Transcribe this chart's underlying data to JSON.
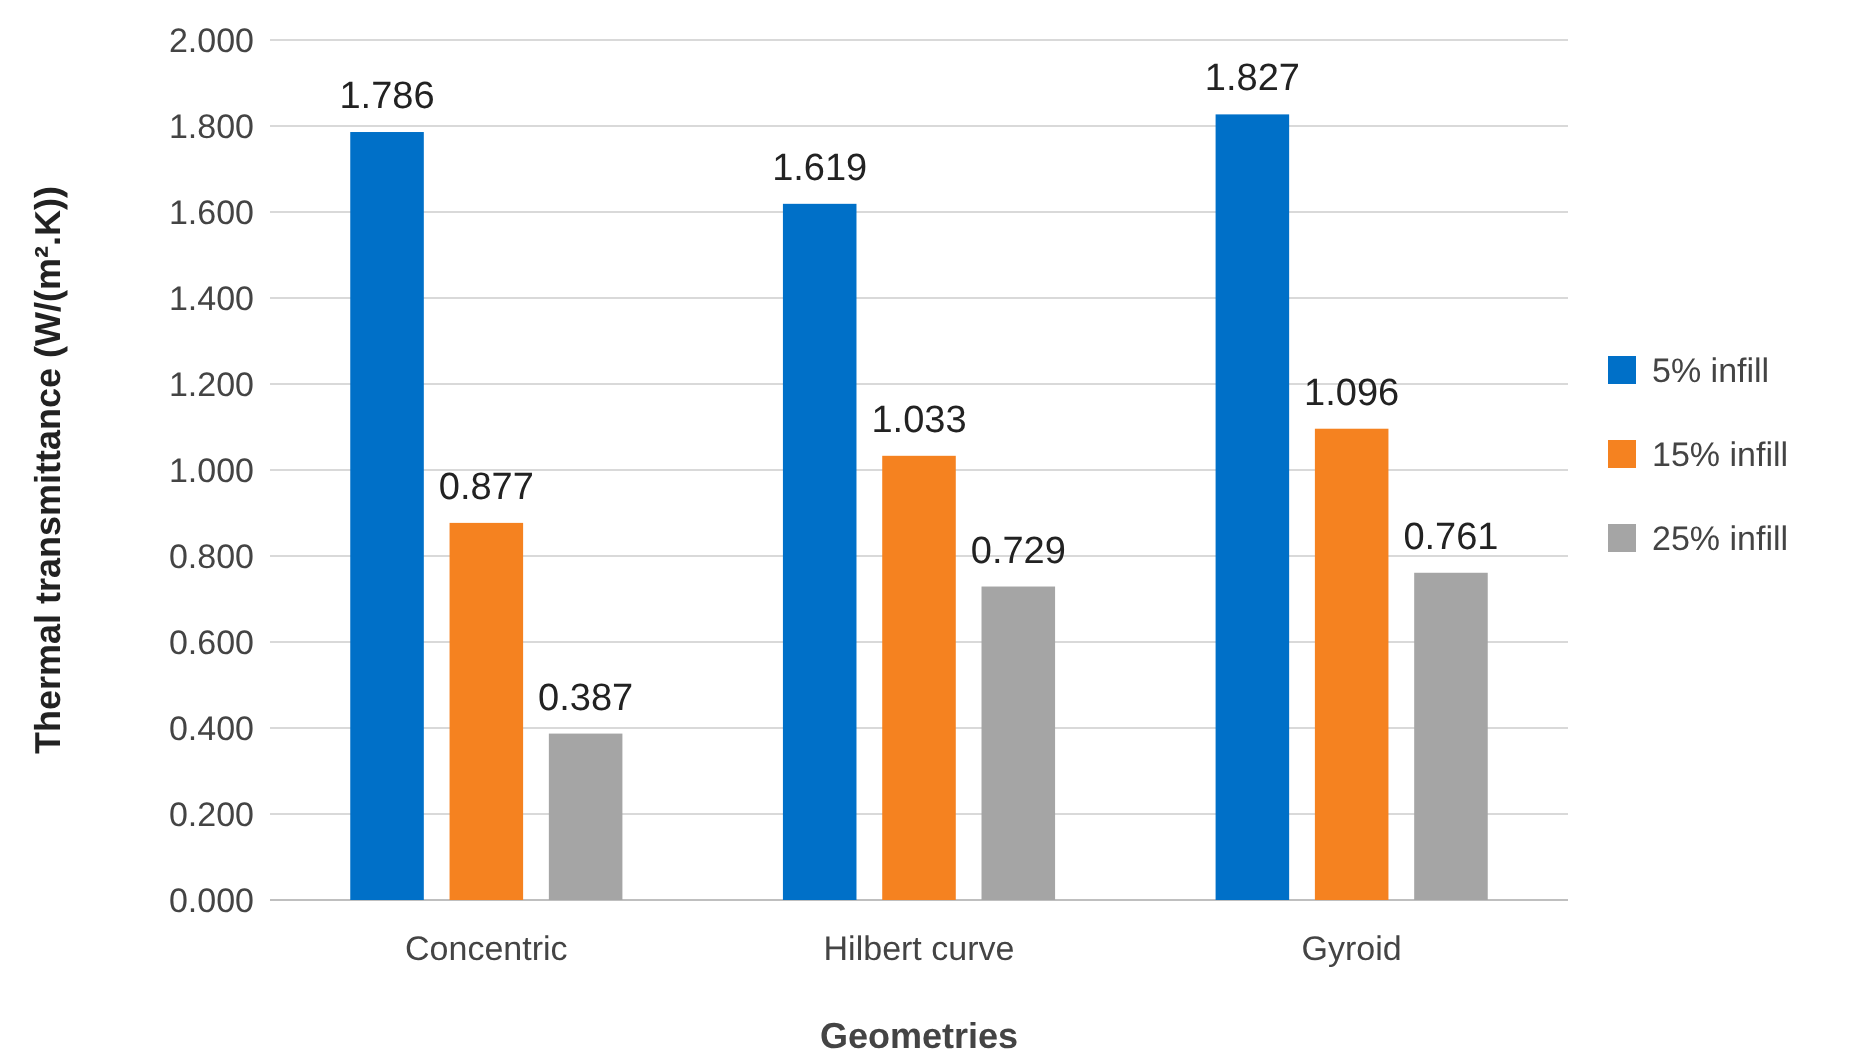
{
  "chart_data": {
    "type": "bar",
    "xlabel": "Geometries",
    "ylabel": "Thermal transmittance  (W/(m².K))",
    "categories": [
      "Concentric",
      "Hilbert curve",
      "Gyroid"
    ],
    "series": [
      {
        "name": "5% infill",
        "color": "#0070c8",
        "values": [
          1.786,
          1.619,
          1.827
        ]
      },
      {
        "name": "15% infill",
        "color": "#f58220",
        "values": [
          0.877,
          1.033,
          1.096
        ]
      },
      {
        "name": "25% infill",
        "color": "#a5a5a5",
        "values": [
          0.387,
          0.729,
          0.761
        ]
      }
    ],
    "ylim": [
      0,
      2
    ],
    "yticks": [
      {
        "value": 0,
        "label": "0.000"
      },
      {
        "value": 0.2,
        "label": "0.200"
      },
      {
        "value": 0.4,
        "label": "0.400"
      },
      {
        "value": 0.6,
        "label": "0.600"
      },
      {
        "value": 0.8,
        "label": "0.800"
      },
      {
        "value": 1,
        "label": "1.000"
      },
      {
        "value": 1.2,
        "label": "1.200"
      },
      {
        "value": 1.4,
        "label": "1.400"
      },
      {
        "value": 1.6,
        "label": "1.600"
      },
      {
        "value": 1.8,
        "label": "1.800"
      },
      {
        "value": 2,
        "label": "2.000"
      }
    ],
    "grid": "y",
    "legend": "right",
    "data_labels": true
  }
}
